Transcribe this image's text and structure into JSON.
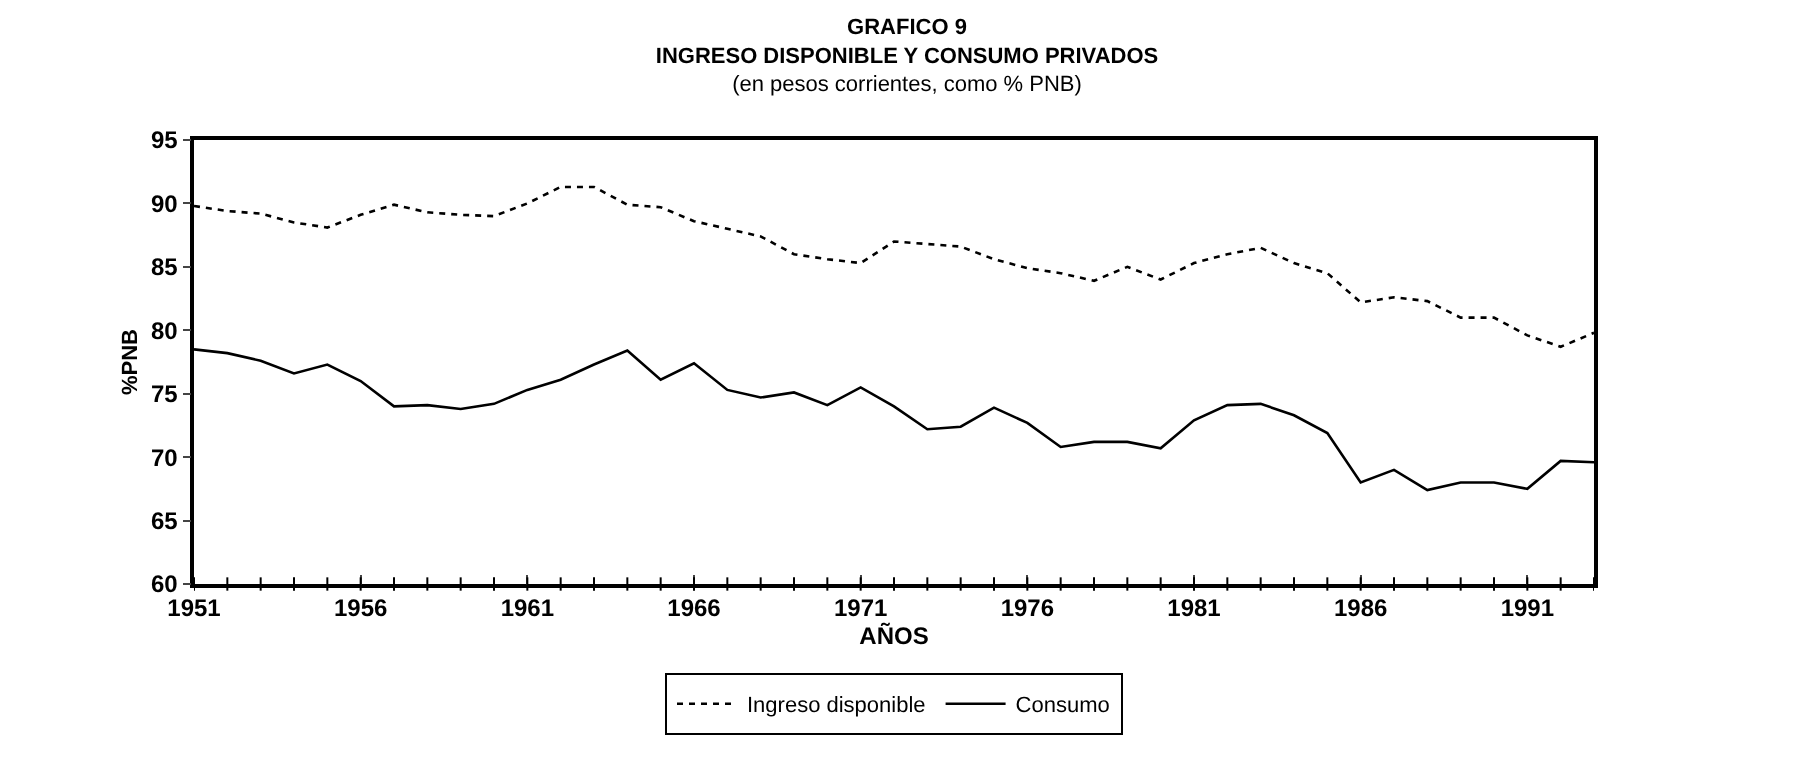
{
  "chart_data": {
    "type": "line",
    "title": "GRAFICO 9",
    "subtitle": "INGRESO DISPONIBLE Y CONSUMO PRIVADOS",
    "annotations": [
      "(en pesos corrientes, como % PNB)"
    ],
    "xlabel": "AÑOS",
    "ylabel": "%PNB",
    "x": [
      1951,
      1952,
      1953,
      1954,
      1955,
      1956,
      1957,
      1958,
      1959,
      1960,
      1961,
      1962,
      1963,
      1964,
      1965,
      1966,
      1967,
      1968,
      1969,
      1970,
      1971,
      1972,
      1973,
      1974,
      1975,
      1976,
      1977,
      1978,
      1979,
      1980,
      1981,
      1982,
      1983,
      1984,
      1985,
      1986,
      1987,
      1988,
      1989,
      1990,
      1991,
      1992,
      1993
    ],
    "series": [
      {
        "name": "Ingreso disponible",
        "color": "#000000",
        "line_style": "dotted",
        "values": [
          89.8,
          89.4,
          89.2,
          88.5,
          88.1,
          89.1,
          89.9,
          89.3,
          89.1,
          89,
          90,
          91.3,
          91.3,
          89.9,
          89.7,
          88.6,
          88,
          87.4,
          86,
          85.6,
          85.3,
          87,
          86.8,
          86.6,
          85.6,
          84.9,
          84.5,
          83.9,
          85,
          84,
          85.3,
          86,
          86.5,
          85.3,
          84.5,
          82.2,
          82.6,
          82.3,
          81,
          81,
          79.6,
          78.7,
          79.8
        ]
      },
      {
        "name": "Consumo",
        "color": "#000000",
        "line_style": "solid",
        "values": [
          78.5,
          78.2,
          77.6,
          76.6,
          77.3,
          76,
          74,
          74.1,
          73.8,
          74.2,
          75.3,
          76.1,
          77.3,
          78.4,
          76.1,
          77.4,
          75.3,
          74.7,
          75.1,
          74.1,
          75.5,
          74,
          72.2,
          72.4,
          73.9,
          72.7,
          70.8,
          71.2,
          71.2,
          70.7,
          72.9,
          74.1,
          74.2,
          73.3,
          71.9,
          68,
          69,
          67.4,
          68,
          68,
          67.5,
          69.7,
          69.6
        ]
      }
    ],
    "xlim": [
      1951,
      1993
    ],
    "xticks": [
      1951,
      1956,
      1961,
      1966,
      1971,
      1976,
      1981,
      1986,
      1991
    ],
    "ylim": [
      60,
      95
    ],
    "yticks": [
      60,
      65,
      70,
      75,
      80,
      85,
      90,
      95
    ],
    "grid": false,
    "legend": "bottom",
    "marker": "none"
  }
}
